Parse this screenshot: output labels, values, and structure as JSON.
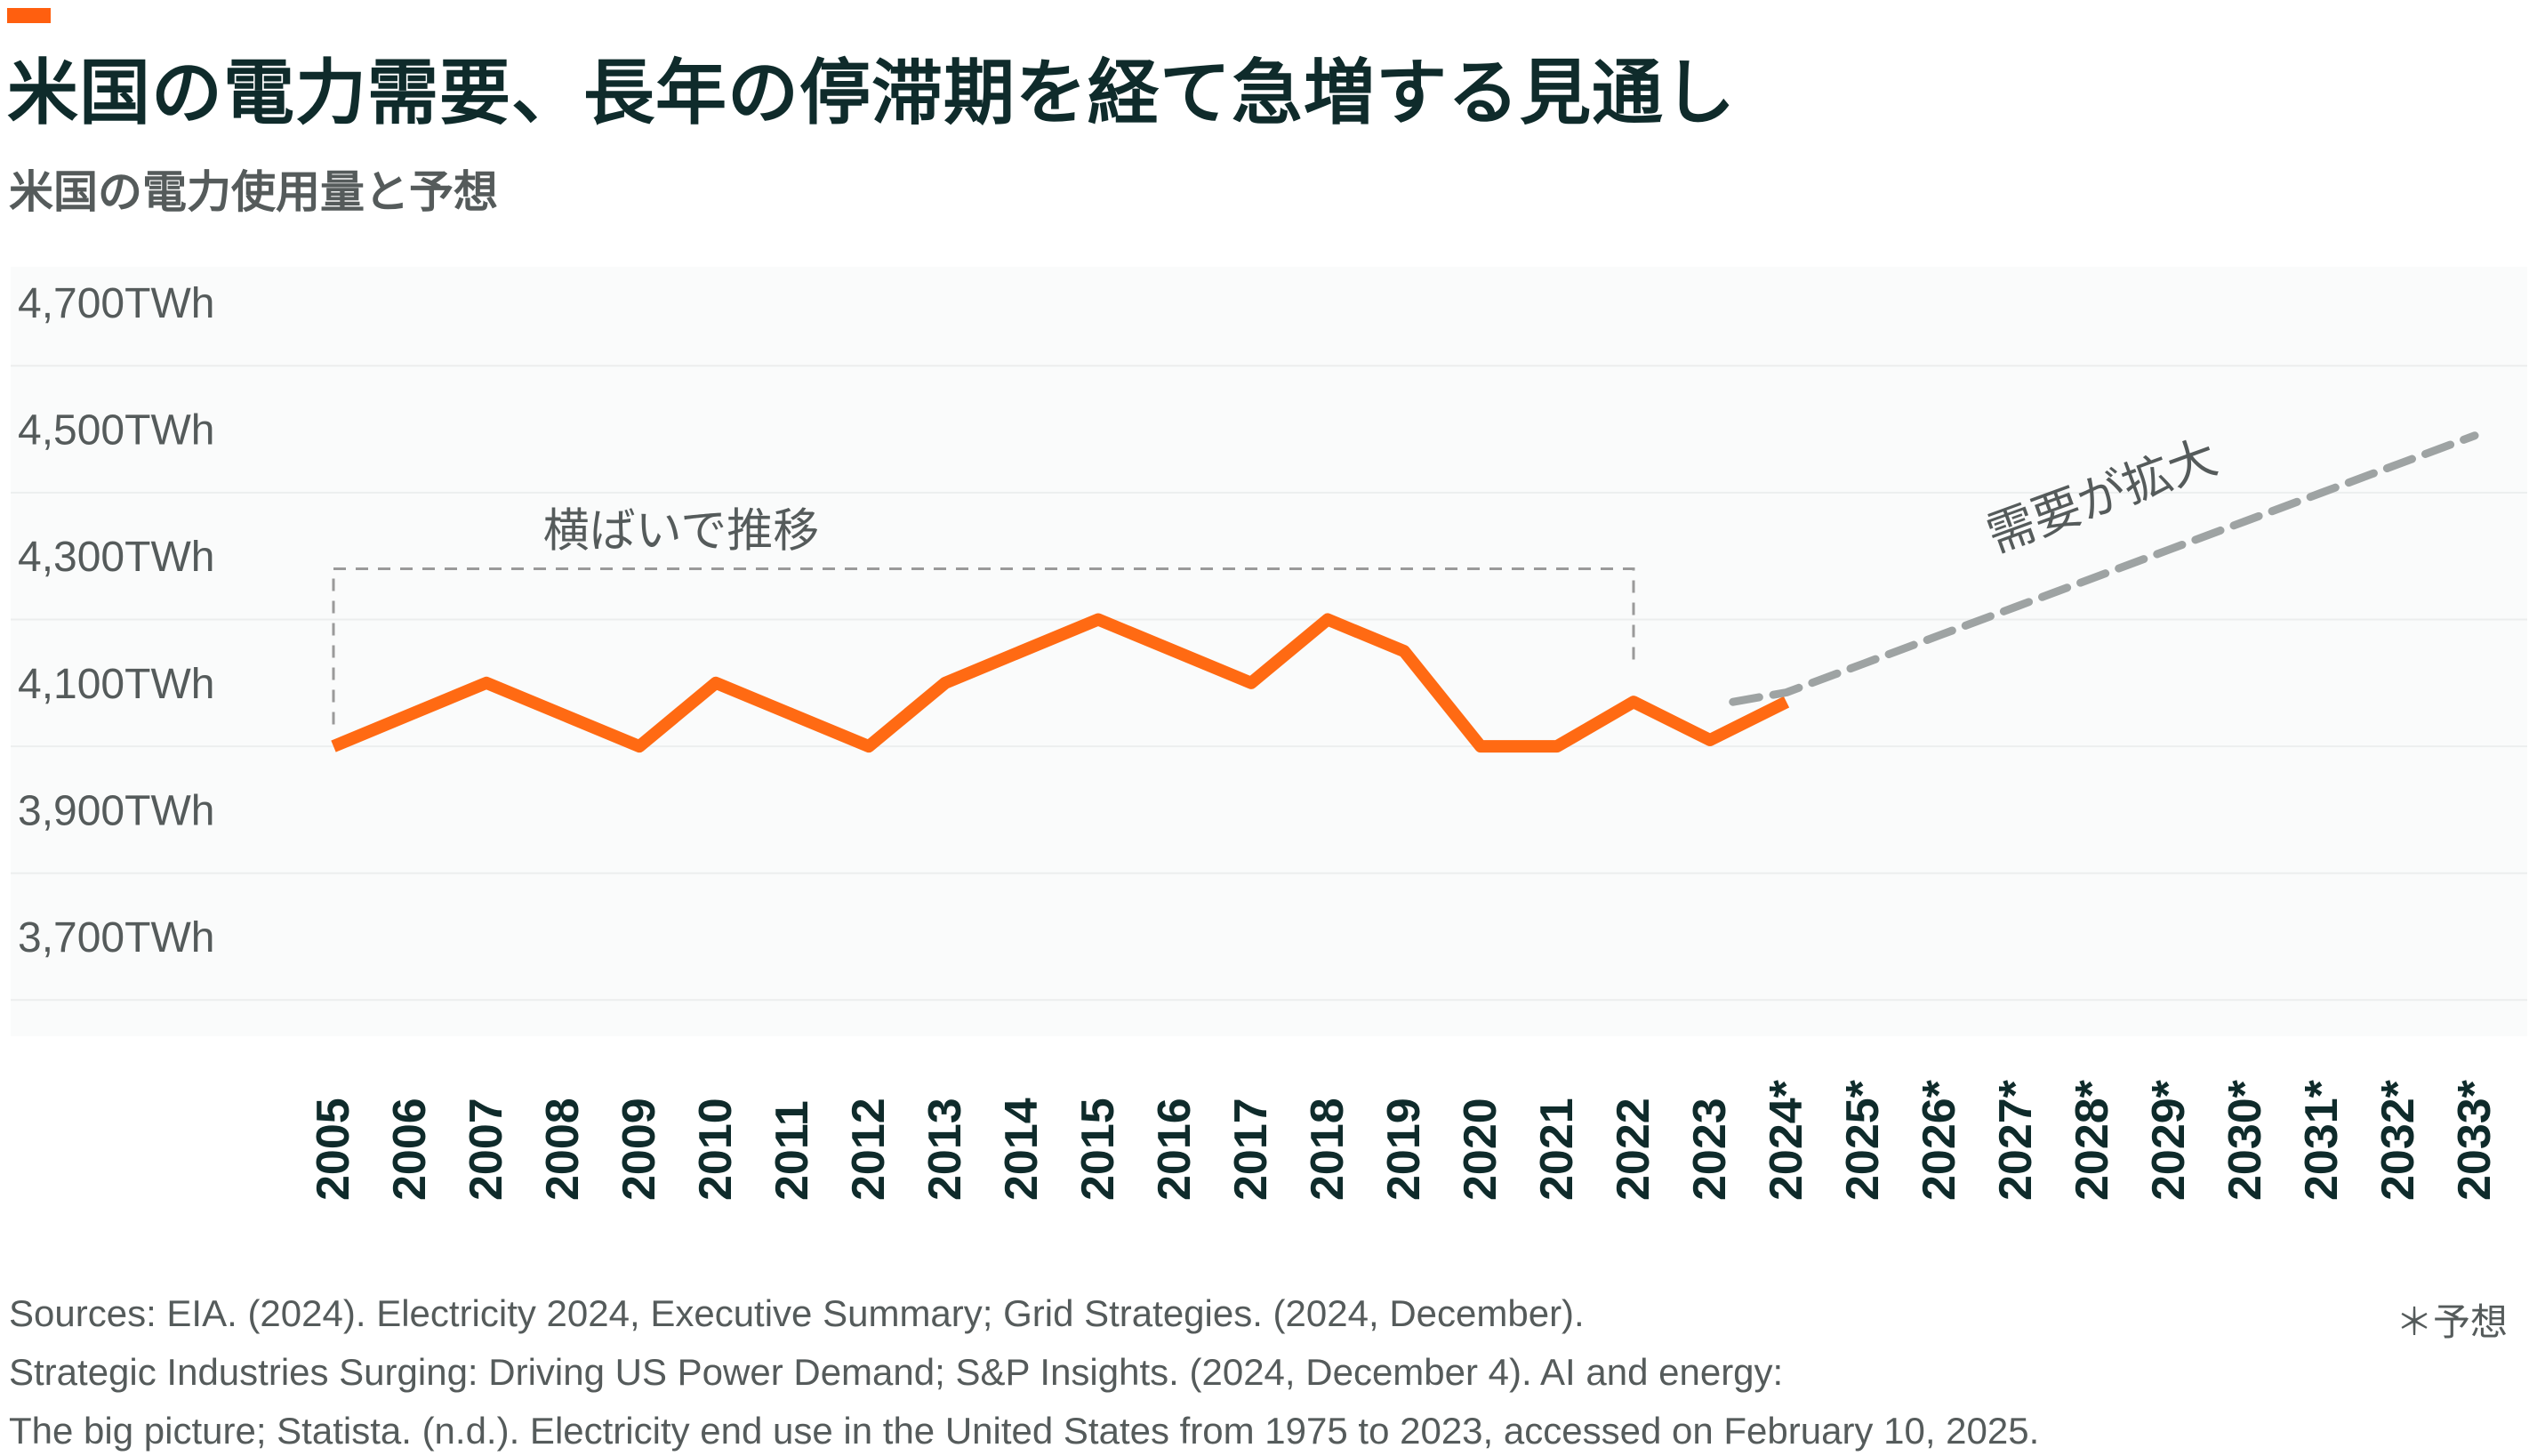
{
  "title": "米国の電力需要、長年の停滞期を経て急増する見通し",
  "subtitle": "米国の電力使用量と予想",
  "colors": {
    "accent": "#ff5f0f",
    "line": "#ff6a13",
    "forecast": "#9ea3a3",
    "title": "#0f2b2b",
    "text": "#555b5b",
    "plot_background": "#fafbfb",
    "grid": "#eceeee"
  },
  "chart_data": {
    "type": "line",
    "title": "米国の電力需要、長年の停滞期を経て急増する見通し",
    "subtitle": "米国の電力使用量と予想",
    "xlabel": "",
    "ylabel": "",
    "categories": [
      "2005",
      "2006",
      "2007",
      "2008",
      "2009",
      "2010",
      "2011",
      "2012",
      "2013",
      "2014",
      "2015",
      "2016",
      "2017",
      "2018",
      "2019",
      "2020",
      "2021",
      "2022",
      "2023",
      "2024*",
      "2025*",
      "2026*",
      "2027*",
      "2028*",
      "2029*",
      "2030*",
      "2031*",
      "2032*",
      "2033*"
    ],
    "y_ticks": [
      "3,700TWh",
      "3,900TWh",
      "4,100TWh",
      "4,300TWh",
      "4,500TWh",
      "4,700TWh"
    ],
    "ylim": [
      3550,
      4750
    ],
    "series": [
      {
        "style": "solid",
        "values": [
          4000,
          4050,
          4100,
          4050,
          4000,
          4100,
          4050,
          4000,
          4100,
          4150,
          4200,
          4150,
          4100,
          4200,
          4150,
          4000,
          4000,
          4070,
          4010,
          4070,
          null,
          null,
          null,
          null,
          null,
          null,
          null,
          null,
          null
        ]
      },
      {
        "style": "dashed",
        "x_start": 2023.3,
        "values": [
          null,
          null,
          null,
          null,
          null,
          null,
          null,
          null,
          null,
          null,
          null,
          null,
          null,
          null,
          null,
          null,
          null,
          null,
          null,
          4085,
          4130,
          4175,
          4220,
          4265,
          4310,
          4355,
          4400,
          4445,
          4490
        ]
      }
    ],
    "annotations": [
      {
        "text": "横ばいで推移",
        "type": "bracket",
        "x_range": [
          "2005",
          "2022"
        ],
        "y": 4280
      },
      {
        "text": "需要が拡大",
        "type": "label"
      }
    ],
    "grid": true,
    "forecast_note": "＊予想"
  },
  "sources": [
    "Sources: EIA. (2024). Electricity 2024, Executive Summary; Grid Strategies. (2024, December).",
    "Strategic Industries Surging: Driving US Power Demand; S&P Insights. (2024, December 4). AI and energy:",
    "The big picture; Statista. (n.d.). Electricity end use in the United States from 1975 to 2023, accessed on February 10, 2025."
  ]
}
